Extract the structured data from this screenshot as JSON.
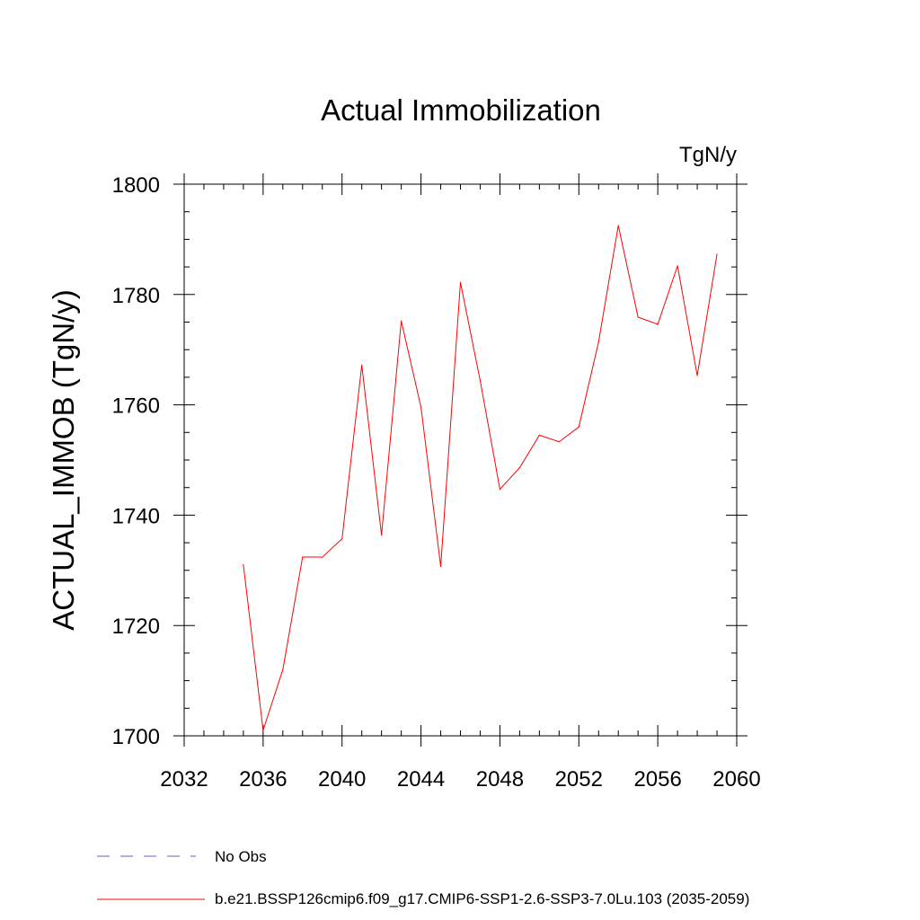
{
  "chart_data": {
    "type": "line",
    "title": "Actual Immobilization",
    "units_label": "TgN/y",
    "ylabel": "ACTUAL_IMMOB  (TgN/y)",
    "xlabel": "",
    "xlim": [
      2032,
      2060
    ],
    "ylim": [
      1700,
      1800
    ],
    "xticks": [
      2032,
      2036,
      2040,
      2044,
      2048,
      2052,
      2056,
      2060
    ],
    "yticks": [
      1700,
      1720,
      1740,
      1760,
      1780,
      1800
    ],
    "x_minor_step": 1,
    "y_minor_step": 5,
    "grid": false,
    "legend_position": "bottom-left",
    "series": [
      {
        "name": "b.e21.BSSP126cmip6.f09_g17.CMIP6-SSP1-2.6-SSP3-7.0Lu.103 (2035-2059)",
        "color": "#ff0000",
        "line_style": "solid",
        "x": [
          2035,
          2036,
          2037,
          2038,
          2039,
          2040,
          2041,
          2042,
          2043,
          2044,
          2045,
          2046,
          2047,
          2048,
          2049,
          2050,
          2051,
          2052,
          2053,
          2054,
          2055,
          2056,
          2057,
          2058,
          2059
        ],
        "values": [
          1731,
          1701,
          1712,
          1732.4,
          1732.4,
          1735.7,
          1767.2,
          1736.4,
          1775.2,
          1759.6,
          1730.7,
          1782.2,
          1764.4,
          1744.7,
          1748.6,
          1754.5,
          1753.3,
          1756,
          1771.4,
          1792.5,
          1775.9,
          1774.6,
          1785.2,
          1765.3,
          1787.3
        ]
      }
    ],
    "legend": [
      {
        "label": "No Obs",
        "color": "#6a5acd",
        "line_style": "dashed"
      },
      {
        "label": "b.e21.BSSP126cmip6.f09_g17.CMIP6-SSP1-2.6-SSP3-7.0Lu.103 (2035-2059)",
        "color": "#ff0000",
        "line_style": "solid"
      }
    ]
  }
}
